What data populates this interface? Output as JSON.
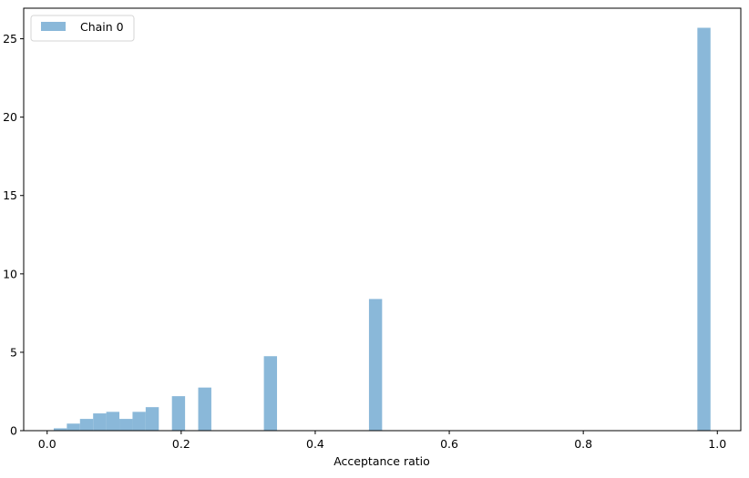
{
  "chart_data": {
    "type": "bar",
    "title": "",
    "xlabel": "Acceptance ratio",
    "ylabel": "",
    "xlim": [
      -0.035,
      1.035
    ],
    "ylim": [
      0,
      26.95
    ],
    "xticks": [
      0.0,
      0.2,
      0.4,
      0.6,
      0.8,
      1.0
    ],
    "xtick_labels": [
      "0.0",
      "0.2",
      "0.4",
      "0.6",
      "0.8",
      "1.0"
    ],
    "yticks": [
      0,
      5,
      10,
      15,
      20,
      25
    ],
    "ytick_labels": [
      "0",
      "5",
      "10",
      "15",
      "20",
      "25"
    ],
    "grid": false,
    "legend": {
      "position": "top-left",
      "entries": [
        "Chain 0"
      ]
    },
    "bar_width": 0.0196,
    "color": "#8ab8d9",
    "series": [
      {
        "name": "Chain 0",
        "bins": [
          {
            "x": 0.0196,
            "height": 0.15
          },
          {
            "x": 0.0392,
            "height": 0.45
          },
          {
            "x": 0.0588,
            "height": 0.75
          },
          {
            "x": 0.0784,
            "height": 1.1
          },
          {
            "x": 0.098,
            "height": 1.2
          },
          {
            "x": 0.1176,
            "height": 0.75
          },
          {
            "x": 0.1372,
            "height": 1.2
          },
          {
            "x": 0.1568,
            "height": 1.5
          },
          {
            "x": 0.196,
            "height": 2.2
          },
          {
            "x": 0.2352,
            "height": 2.75
          },
          {
            "x": 0.3332,
            "height": 4.75
          },
          {
            "x": 0.49,
            "height": 8.4
          },
          {
            "x": 0.98,
            "height": 25.7
          }
        ]
      }
    ]
  }
}
